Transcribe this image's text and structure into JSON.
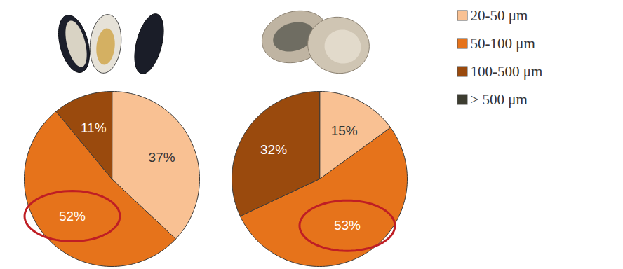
{
  "chart_data": [
    {
      "type": "pie",
      "categories": [
        "20-50 μm",
        "50-100 μm",
        "100-500 μm",
        "> 500 μm"
      ],
      "values": [
        37,
        52,
        11,
        0
      ],
      "value_labels": [
        "37%",
        "52%",
        "11%",
        null
      ],
      "colors": [
        "#f9c193",
        "#e6731b",
        "#9a4a0d",
        "#3d3d30"
      ],
      "data_labels": true,
      "legend": "top-right"
    },
    {
      "type": "pie",
      "categories": [
        "20-50 μm",
        "50-100 μm",
        "100-500 μm",
        "> 500 μm"
      ],
      "values": [
        15,
        53,
        32,
        0
      ],
      "value_labels": [
        "15%",
        "53%",
        "32%",
        null
      ],
      "colors": [
        "#f9c193",
        "#e6731b",
        "#9a4a0d",
        "#3d3d30"
      ],
      "data_labels": true
    }
  ]
}
